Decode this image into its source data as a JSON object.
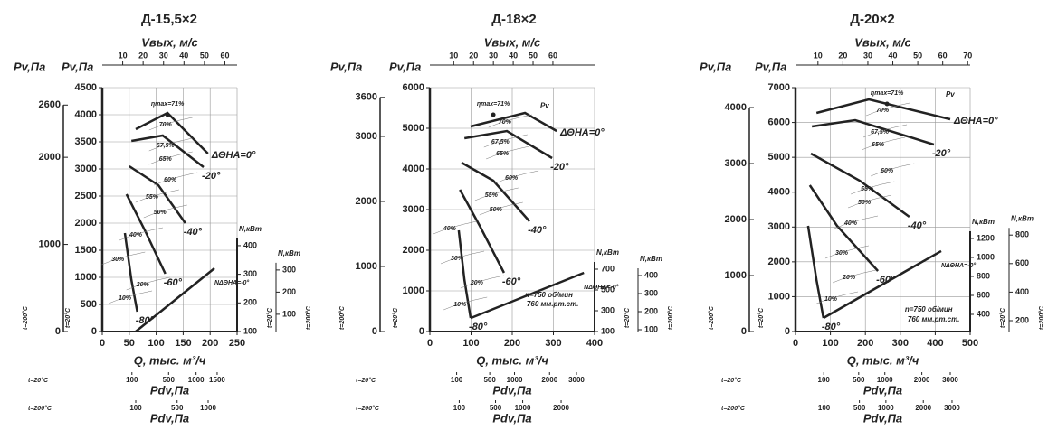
{
  "chart_data": [
    {
      "type": "line",
      "title": "Д-15,5×2",
      "y_label": "Pv,Па",
      "y_note": "t=20°C",
      "x_label": "Q, тыс. м³/ч",
      "xlim": [
        0,
        250
      ],
      "xticks": [
        0,
        50,
        100,
        150,
        200,
        250
      ],
      "ylim": [
        0,
        4500
      ],
      "yticks": [
        0,
        500,
        1000,
        1500,
        2000,
        2500,
        3000,
        3500,
        4000,
        4500
      ],
      "grid": true,
      "y_outer": {
        "label": "Pv,Па",
        "note": "t=200°C",
        "lim": [
          0,
          2800
        ],
        "ticks": [
          0,
          1000,
          2000,
          2600
        ]
      },
      "top": {
        "label": "Vвых, м/с",
        "lim": [
          0,
          66
        ],
        "ticks": [
          10,
          20,
          30,
          40,
          50,
          60
        ]
      },
      "y2": {
        "label": "N,кВт",
        "note": "t=20°C",
        "lim": [
          100,
          952
        ],
        "ticks": [
          100,
          200,
          300,
          400
        ]
      },
      "y3": {
        "label": "N,кВт",
        "note": "t=200°C",
        "lim": [
          22,
          1124
        ],
        "ticks": [
          100,
          200,
          300
        ]
      },
      "pdv": [
        {
          "note": "t=20°C",
          "label": "Pdv,Па",
          "scale": "sqrt",
          "lim": [
            0,
            2066
          ],
          "ticks": [
            100,
            500,
            1000,
            1500
          ]
        },
        {
          "note": "t=200°C",
          "label": "Pdv,Па",
          "scale": "sqrt",
          "lim": [
            0,
            1622
          ],
          "ticks": [
            100,
            500,
            1000
          ]
        }
      ],
      "series": [
        {
          "name": "ΔΘНА=0°",
          "color": "#222",
          "x": [
            62,
            121,
            196
          ],
          "y": [
            3733,
            4033,
            3283
          ]
        },
        {
          "name": "-20°",
          "color": "#222",
          "x": [
            54,
            112,
            188
          ],
          "y": [
            3517,
            3617,
            3033
          ]
        },
        {
          "name": "-40°",
          "color": "#222",
          "x": [
            50,
            104,
            154
          ],
          "y": [
            3050,
            2700,
            2000
          ]
        },
        {
          "name": "-60°",
          "color": "#222",
          "x": [
            45,
            79,
            117
          ],
          "y": [
            2533,
            1867,
            1067
          ]
        },
        {
          "name": "-80°",
          "color": "#222",
          "x": [
            42,
            54,
            65
          ],
          "y": [
            1817,
            950,
            367
          ]
        },
        {
          "name": "NΔΘНА=-0°",
          "color": "#222",
          "axis": "y2",
          "x": [
            62,
            208
          ],
          "y": [
            100,
            321
          ]
        }
      ],
      "peak": {
        "label": "ηmax=71%",
        "x": 121,
        "y": 4000
      },
      "efficiency": [
        {
          "label": "70%",
          "x": 117,
          "y": 3817
        },
        {
          "label": "67,5%",
          "x": 117,
          "y": 3433
        },
        {
          "label": "65%",
          "x": 117,
          "y": 3183
        },
        {
          "label": "60%",
          "x": 126,
          "y": 2800
        },
        {
          "label": "55%",
          "x": 92,
          "y": 2483
        },
        {
          "label": "50%",
          "x": 107,
          "y": 2200
        },
        {
          "label": "40%",
          "x": 62,
          "y": 1783
        },
        {
          "label": "30%",
          "x": 29,
          "y": 1333
        },
        {
          "label": "20%",
          "x": 75,
          "y": 867
        },
        {
          "label": "10%",
          "x": 42,
          "y": 617
        }
      ],
      "annotations": []
    },
    {
      "type": "line",
      "title": "Д-18×2",
      "y_label": "Pv,Па",
      "y_note": "t=20°C",
      "x_label": "Q, тыс. м³/ч",
      "xlim": [
        0,
        400
      ],
      "xticks": [
        0,
        100,
        200,
        300,
        400
      ],
      "ylim": [
        0,
        6000
      ],
      "yticks": [
        0,
        1000,
        2000,
        3000,
        4000,
        5000,
        6000
      ],
      "grid": true,
      "y_outer": {
        "label": "Pv,Па",
        "note": "t=200°C",
        "lim": [
          0,
          3750
        ],
        "ticks": [
          0,
          1000,
          2000,
          3000,
          3600
        ]
      },
      "top": {
        "label": "Vвых, м/с",
        "lim": [
          -2,
          81
        ],
        "ticks": [
          10,
          20,
          30,
          40,
          50,
          60
        ]
      },
      "y2": {
        "label": "N,кВт",
        "note": "t=20°C",
        "lim": [
          100,
          2448
        ],
        "ticks": [
          100,
          300,
          500,
          700
        ]
      },
      "y3": {
        "label": "N,кВт",
        "note": "t=200°C",
        "lim": [
          90,
          1440
        ],
        "ticks": [
          100,
          200,
          300,
          400
        ]
      },
      "pdv": [
        {
          "note": "t=20°C",
          "label": "Pdv,Па",
          "scale": "sqrt",
          "lim": [
            0,
            3787
          ],
          "ticks": [
            100,
            500,
            1000,
            2000,
            3000
          ]
        },
        {
          "note": "t=200°C",
          "label": "Pdv,Па",
          "scale": "sqrt",
          "lim": [
            0,
            3149
          ],
          "ticks": [
            100,
            500,
            1000,
            2000
          ]
        }
      ],
      "series": [
        {
          "name": "ΔΘНА=0°",
          "color": "#222",
          "x": [
            99,
            231,
            308
          ],
          "y": [
            5044,
            5378,
            4933
          ]
        },
        {
          "name": "-20°",
          "color": "#222",
          "x": [
            84,
            187,
            297
          ],
          "y": [
            4756,
            4933,
            4267
          ]
        },
        {
          "name": "-40°",
          "color": "#222",
          "x": [
            77,
            154,
            242
          ],
          "y": [
            4156,
            3711,
            2711
          ]
        },
        {
          "name": "-60°",
          "color": "#222",
          "x": [
            73,
            121,
            180
          ],
          "y": [
            3489,
            2600,
            1444
          ]
        },
        {
          "name": "-80°",
          "color": "#222",
          "x": [
            70,
            84,
            99
          ],
          "y": [
            2489,
            1267,
            333
          ]
        },
        {
          "name": "NΔΘНА=-0°",
          "color": "#222",
          "axis": "y2",
          "x": [
            99,
            374
          ],
          "y": [
            230,
            665
          ]
        }
      ],
      "peak": {
        "label": "ηmax=71%",
        "x": 154,
        "y": 5333
      },
      "efficiency": [
        {
          "label": "70%",
          "x": 182,
          "y": 5156
        },
        {
          "label": "67,5%",
          "x": 171,
          "y": 4667
        },
        {
          "label": "65%",
          "x": 176,
          "y": 4378
        },
        {
          "label": "60%",
          "x": 198,
          "y": 3778
        },
        {
          "label": "55%",
          "x": 149,
          "y": 3356
        },
        {
          "label": "50%",
          "x": 160,
          "y": 3000
        },
        {
          "label": "40%",
          "x": 48,
          "y": 2533
        },
        {
          "label": "30%",
          "x": 66,
          "y": 1800
        },
        {
          "label": "20%",
          "x": 114,
          "y": 1200
        },
        {
          "label": "10%",
          "x": 73,
          "y": 667
        }
      ],
      "annotations": [
        {
          "label": "Pv",
          "x": 268,
          "y": 5550
        },
        {
          "label": "n=750 об/мин",
          "x": 231,
          "y": 889
        },
        {
          "label": "760 мм.рт.ст.",
          "x": 235,
          "y": 667
        }
      ]
    },
    {
      "type": "line",
      "title": "Д-20×2",
      "y_label": "Pv,Па",
      "y_note": "t=20°C",
      "x_label": "Q, тыс. м³/ч",
      "xlim": [
        0,
        500
      ],
      "xticks": [
        0,
        100,
        200,
        300,
        400,
        500
      ],
      "ylim": [
        0,
        7000
      ],
      "yticks": [
        0,
        1000,
        2000,
        3000,
        4000,
        5000,
        6000,
        7000
      ],
      "grid": true,
      "y_outer": {
        "label": "Pv,Па",
        "note": "t=200°C",
        "lim": [
          0,
          4355
        ],
        "ticks": [
          0,
          1000,
          2000,
          3000,
          4000
        ]
      },
      "top": {
        "label": "Vвых, м/с",
        "lim": [
          1,
          71
        ],
        "ticks": [
          10,
          20,
          30,
          40,
          50,
          60,
          70
        ]
      },
      "y2": {
        "label": "N,кВт",
        "note": "t=20°C",
        "lim": [
          219,
          2790
        ],
        "ticks": [
          400,
          600,
          800,
          1000,
          1200
        ]
      },
      "y3": {
        "label": "N,кВт",
        "note": "t=200°C",
        "lim": [
          124,
          1833
        ],
        "ticks": [
          200,
          400,
          600,
          800
        ]
      },
      "pdv": [
        {
          "note": "t=20°C",
          "label": "Pdv,Па",
          "scale": "sqrt",
          "lim": [
            0,
            3822
          ],
          "ticks": [
            100,
            500,
            1000,
            2000,
            3000
          ]
        },
        {
          "note": "t=200°C",
          "label": "Pdv,Па",
          "scale": "sqrt",
          "lim": [
            0,
            3735
          ],
          "ticks": [
            100,
            500,
            1000,
            2000,
            3000
          ]
        }
      ],
      "series": [
        {
          "name": "ΔΘНА=0°",
          "color": "#222",
          "x": [
            60,
            210,
            443
          ],
          "y": [
            6274,
            6663,
            6093
          ]
        },
        {
          "name": "-20°",
          "color": "#222",
          "x": [
            47,
            171,
            396
          ],
          "y": [
            5885,
            6067,
            5367
          ]
        },
        {
          "name": "-40°",
          "color": "#222",
          "x": [
            44,
            184,
            326
          ],
          "y": [
            5107,
            4330,
            3293
          ]
        },
        {
          "name": "-60°",
          "color": "#222",
          "x": [
            41,
            119,
            236
          ],
          "y": [
            4200,
            3033,
            1737
          ]
        },
        {
          "name": "-80°",
          "color": "#222",
          "x": [
            36,
            60,
            80
          ],
          "y": [
            3033,
            1478,
            389
          ]
        },
        {
          "name": "NΔΘНА=-0°",
          "color": "#222",
          "axis": "y2",
          "x": [
            80,
            417
          ],
          "y": [
            362,
            1067
          ]
        }
      ],
      "peak": {
        "label": "ηmax=71%",
        "x": 262,
        "y": 6533
      },
      "efficiency": [
        {
          "label": "70%",
          "x": 249,
          "y": 6352
        },
        {
          "label": "67,5%",
          "x": 241,
          "y": 5730
        },
        {
          "label": "65%",
          "x": 236,
          "y": 5367
        },
        {
          "label": "60%",
          "x": 262,
          "y": 4615
        },
        {
          "label": "55%",
          "x": 205,
          "y": 4096
        },
        {
          "label": "50%",
          "x": 197,
          "y": 3707
        },
        {
          "label": "40%",
          "x": 158,
          "y": 3111
        },
        {
          "label": "30%",
          "x": 132,
          "y": 2256
        },
        {
          "label": "20%",
          "x": 153,
          "y": 1556
        },
        {
          "label": "10%",
          "x": 101,
          "y": 933
        }
      ],
      "annotations": [
        {
          "label": "Pv",
          "x": 430,
          "y": 6793
        },
        {
          "label": "n=750 об/мин",
          "x": 313,
          "y": 622
        },
        {
          "label": "760 мм.рт.ст.",
          "x": 321,
          "y": 337
        }
      ]
    }
  ]
}
